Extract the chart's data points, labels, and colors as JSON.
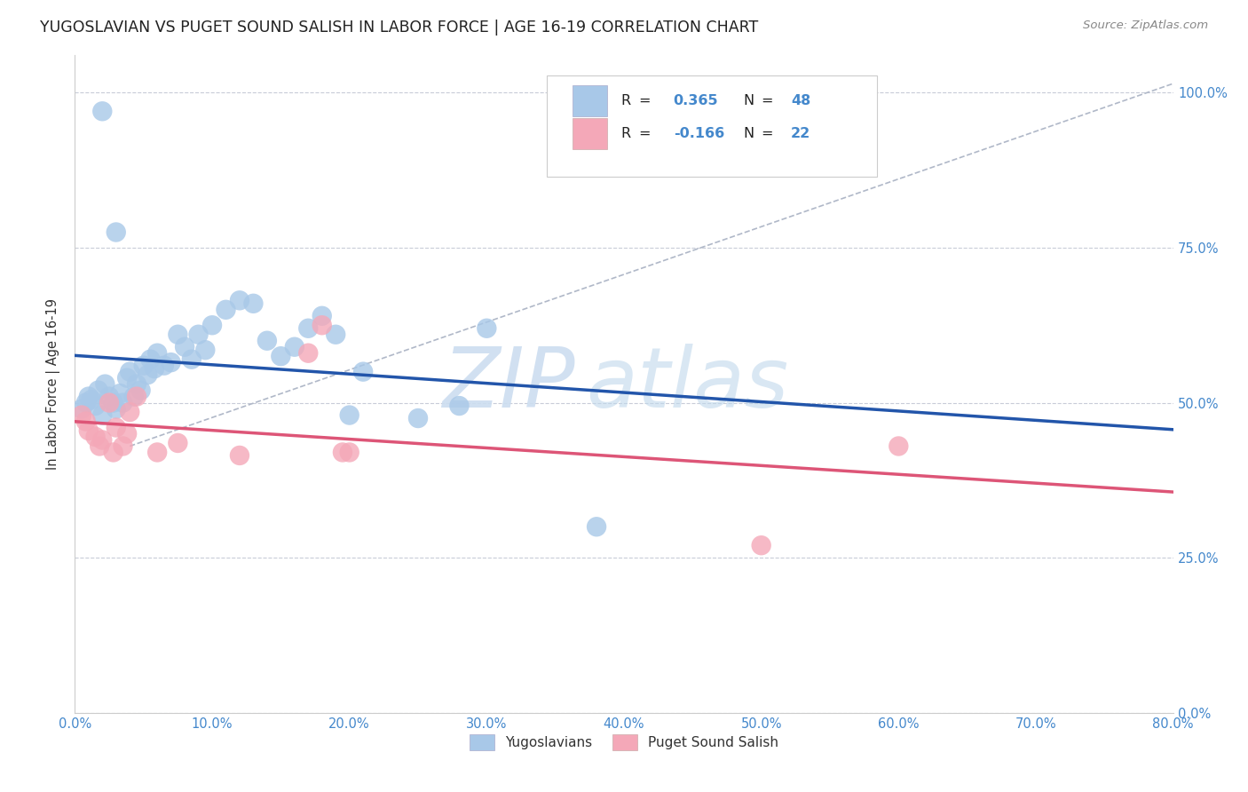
{
  "title": "YUGOSLAVIAN VS PUGET SOUND SALISH IN LABOR FORCE | AGE 16-19 CORRELATION CHART",
  "source": "Source: ZipAtlas.com",
  "ylabel": "In Labor Force | Age 16-19",
  "R_yug": 0.365,
  "N_yug": 48,
  "R_pug": -0.166,
  "N_pug": 22,
  "scatter_blue": "#a8c8e8",
  "scatter_pink": "#f4a8b8",
  "trend_blue": "#2255aa",
  "trend_pink": "#dd5577",
  "ref_line_color": "#b0b8c8",
  "grid_color": "#c8ccd8",
  "xlim": [
    0.0,
    0.8
  ],
  "ylim": [
    0.0,
    1.06
  ],
  "xtick_vals": [
    0.0,
    0.1,
    0.2,
    0.3,
    0.4,
    0.5,
    0.6,
    0.7,
    0.8
  ],
  "ytick_vals": [
    0.0,
    0.25,
    0.5,
    0.75,
    1.0
  ],
  "title_color": "#222222",
  "source_color": "#888888",
  "tick_color": "#4488cc",
  "ylabel_color": "#333333",
  "legend_text_color": "#222222",
  "legend_value_color": "#4488cc",
  "yug_x": [
    0.005,
    0.008,
    0.01,
    0.012,
    0.015,
    0.017,
    0.02,
    0.022,
    0.025,
    0.028,
    0.03,
    0.033,
    0.035,
    0.038,
    0.04,
    0.043,
    0.045,
    0.048,
    0.05,
    0.053,
    0.055,
    0.058,
    0.06,
    0.065,
    0.07,
    0.075,
    0.08,
    0.085,
    0.09,
    0.095,
    0.1,
    0.11,
    0.12,
    0.13,
    0.14,
    0.15,
    0.16,
    0.17,
    0.18,
    0.19,
    0.2,
    0.21,
    0.25,
    0.28,
    0.3,
    0.38,
    0.02,
    0.03
  ],
  "yug_y": [
    0.49,
    0.5,
    0.51,
    0.505,
    0.495,
    0.52,
    0.48,
    0.53,
    0.51,
    0.5,
    0.49,
    0.515,
    0.5,
    0.54,
    0.55,
    0.51,
    0.53,
    0.52,
    0.56,
    0.545,
    0.57,
    0.555,
    0.58,
    0.56,
    0.565,
    0.61,
    0.59,
    0.57,
    0.61,
    0.585,
    0.625,
    0.65,
    0.665,
    0.66,
    0.6,
    0.575,
    0.59,
    0.62,
    0.64,
    0.61,
    0.48,
    0.55,
    0.475,
    0.495,
    0.62,
    0.3,
    0.97,
    0.775
  ],
  "pug_x": [
    0.005,
    0.008,
    0.01,
    0.015,
    0.018,
    0.02,
    0.025,
    0.028,
    0.03,
    0.035,
    0.038,
    0.04,
    0.045,
    0.06,
    0.075,
    0.12,
    0.17,
    0.18,
    0.195,
    0.2,
    0.6,
    0.5
  ],
  "pug_y": [
    0.48,
    0.47,
    0.455,
    0.445,
    0.43,
    0.44,
    0.5,
    0.42,
    0.46,
    0.43,
    0.45,
    0.485,
    0.51,
    0.42,
    0.435,
    0.415,
    0.58,
    0.625,
    0.42,
    0.42,
    0.43,
    0.27
  ]
}
